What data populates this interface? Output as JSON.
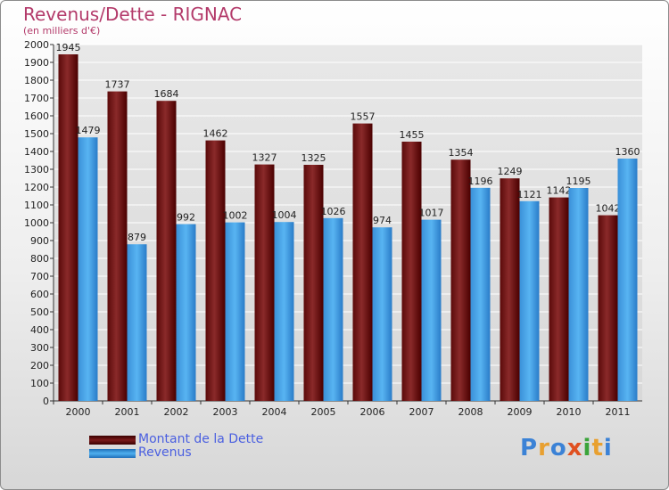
{
  "header": {
    "title": "Revenus/Dette - RIGNAC",
    "subtitle": "(en milliers d'€)"
  },
  "colors": {
    "dette": "#7a1a1a",
    "revenus": "#3f9fe0",
    "title": "#b33a6a",
    "legend_text": "#4a5fe0"
  },
  "chart_data": {
    "type": "bar",
    "title": "Revenus/Dette - RIGNAC",
    "subtitle": "(en milliers d'€)",
    "categories": [
      "2000",
      "2001",
      "2002",
      "2003",
      "2004",
      "2005",
      "2006",
      "2007",
      "2008",
      "2009",
      "2010",
      "2011"
    ],
    "series": [
      {
        "name": "Montant de la Dette",
        "values": [
          1945,
          1737,
          1684,
          1462,
          1327,
          1325,
          1557,
          1455,
          1354,
          1249,
          1142,
          1042
        ]
      },
      {
        "name": "Revenus",
        "values": [
          1479,
          879,
          992,
          1002,
          1004,
          1026,
          974,
          1017,
          1196,
          1121,
          1195,
          1360
        ]
      }
    ],
    "ylim": [
      0,
      2000
    ],
    "ytick_step": 100,
    "grid": true,
    "legend": "bottom-left"
  },
  "legend": {
    "items": [
      {
        "label": "Montant de la Dette",
        "color": "#7a1a1a"
      },
      {
        "label": "Revenus",
        "color": "#3f9fe0"
      }
    ]
  },
  "logo": {
    "text": "Proxiti",
    "letters": [
      {
        "ch": "P",
        "color": "#3b82d6"
      },
      {
        "ch": "r",
        "color": "#e8a030"
      },
      {
        "ch": "o",
        "color": "#3b82d6"
      },
      {
        "ch": "x",
        "color": "#e05020"
      },
      {
        "ch": "i",
        "color": "#3aa43a"
      },
      {
        "ch": "t",
        "color": "#e8a030"
      },
      {
        "ch": "i",
        "color": "#3b82d6"
      }
    ]
  }
}
